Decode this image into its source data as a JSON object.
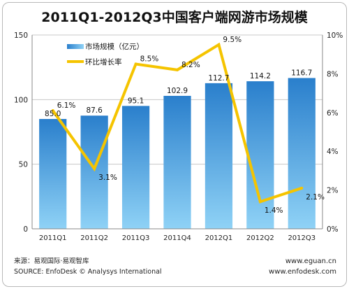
{
  "chart_data": {
    "type": "bar",
    "title": "2011Q1-2012Q3中国客户端网游市场规模",
    "categories": [
      "2011Q1",
      "2011Q2",
      "2011Q3",
      "2011Q4",
      "2012Q1",
      "2012Q2",
      "2012Q3"
    ],
    "series": [
      {
        "name": "市场规模（亿元）",
        "type": "bar",
        "axis": "left",
        "values": [
          85.0,
          87.6,
          95.1,
          102.9,
          112.7,
          114.2,
          116.7
        ],
        "labels": [
          "85.0",
          "87.6",
          "95.1",
          "102.9",
          "112.7",
          "114.2",
          "116.7"
        ]
      },
      {
        "name": "环比增长率",
        "type": "line",
        "axis": "right",
        "values": [
          6.1,
          3.1,
          8.5,
          8.2,
          9.5,
          1.4,
          2.1
        ],
        "labels": [
          "6.1%",
          "3.1%",
          "8.5%",
          "8.2%",
          "9.5%",
          "1.4%",
          "2.1%"
        ]
      }
    ],
    "ylim": [
      0,
      150
    ],
    "y_ticks": [
      "0",
      "50",
      "100",
      "150"
    ],
    "y2lim": [
      0,
      10
    ],
    "y2_ticks": [
      "0%",
      "2%",
      "4%",
      "6%",
      "8%",
      "10%"
    ],
    "legend_position": "top-left",
    "grid": true,
    "colors": {
      "bar": "#2a7fcc",
      "bar_light": "#8fd2f6",
      "line": "#f5c400"
    }
  },
  "footer": {
    "source_cn": "来源：易观国际·易观智库",
    "source_en": "SOURCE: EnfoDesk © Analysys International",
    "website1": "www.eguan.cn",
    "website2": "www.enfodesk.com"
  }
}
